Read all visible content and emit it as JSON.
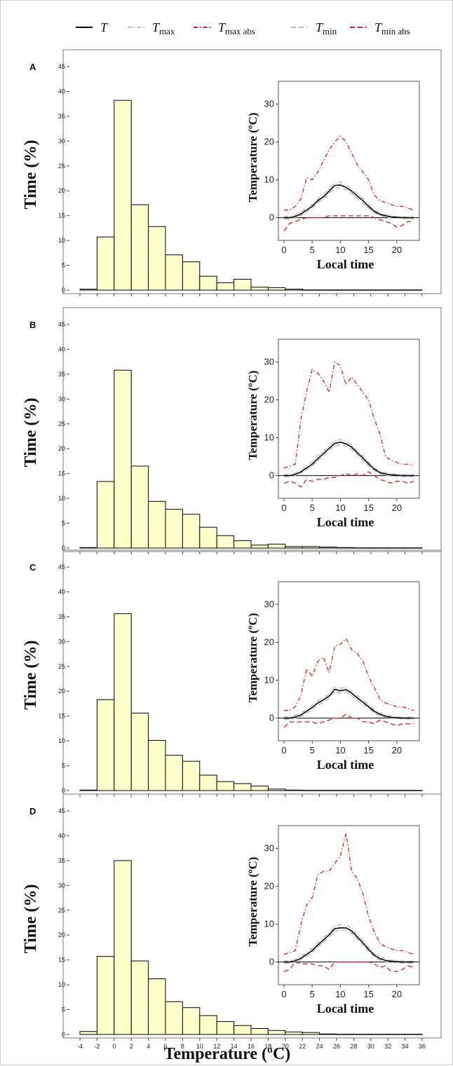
{
  "legend": {
    "items": [
      {
        "main": "T",
        "sub": "",
        "style": "solid",
        "color": "#000000"
      },
      {
        "main": "T",
        "sub": "max",
        "style": "dashdot",
        "color": "#bbbbbb"
      },
      {
        "main": "T",
        "sub": "max abs",
        "style": "dashdot",
        "color": "#e41a1c"
      },
      {
        "main": "T",
        "sub": "min",
        "style": "dashed",
        "color": "#bbbbbb"
      },
      {
        "main": "T",
        "sub": "min abs",
        "style": "dashed",
        "color": "#e41a1c"
      }
    ]
  },
  "colors": {
    "bar_fill": "#ffffcc",
    "bar_stroke": "#000000",
    "abs_line": "#e41a1c",
    "range_line": "#bbbbbb"
  },
  "xlabel": "Temperature (ºC)",
  "chart_data": [
    {
      "type": "bar",
      "panel": "A",
      "ylabel": "Time (%)",
      "ylim": [
        0,
        45
      ],
      "yticks": [
        0,
        5,
        10,
        15,
        20,
        25,
        30,
        35,
        40,
        45
      ],
      "bin_edges": [
        -4,
        -2,
        0,
        2,
        4,
        6,
        8,
        10,
        12,
        14,
        16,
        18,
        20,
        22,
        24,
        26,
        28,
        30,
        32,
        34,
        36
      ],
      "values": [
        0.2,
        10.7,
        38.2,
        17.2,
        12.8,
        7.1,
        5.7,
        2.8,
        1.5,
        2.2,
        0.6,
        0.5,
        0.2,
        0.05,
        0.05,
        0.05,
        0.05,
        0.05,
        0.05,
        0.05
      ],
      "inset": {
        "type": "line",
        "xlabel": "Local time",
        "ylabel": "Temperature (ºC)",
        "xlim": [
          -1,
          24
        ],
        "ylim": [
          -6,
          36
        ],
        "xticks": [
          0,
          5,
          10,
          15,
          20
        ],
        "yticks": [
          0,
          10,
          20,
          30
        ],
        "x": [
          0,
          1,
          2,
          3,
          4,
          5,
          6,
          7,
          8,
          9,
          10,
          11,
          12,
          13,
          14,
          15,
          16,
          17,
          18,
          19,
          20,
          21,
          22,
          23
        ],
        "series": [
          {
            "name": "T",
            "values": [
              0,
              0,
              0.3,
              1,
              2,
              3,
              4.5,
              5.5,
              7,
              8.5,
              8.6,
              8,
              7,
              5.7,
              4.5,
              3,
              1.7,
              0.9,
              0.5,
              0.2,
              0.1,
              0,
              0,
              0
            ]
          },
          {
            "name": "Tmax",
            "values": [
              0.3,
              0.3,
              0.7,
              1.5,
              2.5,
              3.5,
              5,
              6.2,
              7.6,
              9.2,
              9.4,
              8.7,
              7.6,
              6.4,
              5.2,
              3.6,
              2.1,
              1.2,
              0.8,
              0.5,
              0.3,
              0.2,
              0.2,
              0.2
            ]
          },
          {
            "name": "Tmax abs",
            "values": [
              2,
              2,
              3,
              5,
              10.5,
              10,
              12,
              15,
              18,
              20,
              21.5,
              20,
              17,
              14,
              12,
              10,
              6,
              4.5,
              4,
              3.5,
              3,
              3,
              2.5,
              2
            ]
          },
          {
            "name": "Tmin",
            "values": [
              -0.3,
              -0.3,
              0,
              0.6,
              1.5,
              2.5,
              4,
              5,
              6.4,
              7.8,
              7.9,
              7.4,
              6.4,
              5,
              3.8,
              2.5,
              1.3,
              0.6,
              0.2,
              0,
              -0.1,
              -0.2,
              -0.2,
              -0.3
            ]
          },
          {
            "name": "Tmin abs",
            "values": [
              -3.5,
              -1.5,
              -1,
              -0.5,
              0,
              0,
              0,
              0,
              0.5,
              0.5,
              0.5,
              0.5,
              0.5,
              0.5,
              0.5,
              0.5,
              0,
              -0.5,
              -1,
              -1.5,
              -2.5,
              -2,
              -1,
              -1
            ]
          }
        ]
      }
    },
    {
      "type": "bar",
      "panel": "B",
      "ylabel": "Time (%)",
      "ylim": [
        0,
        45
      ],
      "yticks": [
        0,
        5,
        10,
        15,
        20,
        25,
        30,
        35,
        40,
        45
      ],
      "bin_edges": [
        -4,
        -2,
        0,
        2,
        4,
        6,
        8,
        10,
        12,
        14,
        16,
        18,
        20,
        22,
        24,
        26,
        28,
        30,
        32,
        34,
        36
      ],
      "values": [
        0.1,
        13.4,
        35.8,
        16.5,
        9.4,
        7.8,
        6.8,
        4.2,
        2.5,
        1.5,
        0.6,
        0.8,
        0.3,
        0.3,
        0.2,
        0.1,
        0.05,
        0.05,
        0.05,
        0.05
      ],
      "inset": {
        "type": "line",
        "xlabel": "Local time",
        "ylabel": "Temperature (ºC)",
        "xlim": [
          -1,
          24
        ],
        "ylim": [
          -6,
          36
        ],
        "xticks": [
          0,
          5,
          10,
          15,
          20
        ],
        "yticks": [
          0,
          10,
          20,
          30
        ],
        "x": [
          0,
          1,
          2,
          3,
          4,
          5,
          6,
          7,
          8,
          9,
          10,
          11,
          12,
          13,
          14,
          15,
          16,
          17,
          18,
          19,
          20,
          21,
          22,
          23
        ],
        "series": [
          {
            "name": "T",
            "values": [
              0,
              0,
              0.3,
              1,
              2,
              3,
              4.5,
              5.8,
              7.2,
              8.5,
              8.8,
              8.4,
              7.5,
              6,
              4.6,
              3.1,
              1.7,
              0.8,
              0.4,
              0.2,
              0.1,
              0,
              0,
              0
            ]
          },
          {
            "name": "Tmax",
            "values": [
              0.3,
              0.3,
              0.7,
              1.5,
              2.5,
              3.6,
              5.2,
              6.5,
              7.8,
              9.2,
              9.5,
              9,
              8,
              6.6,
              5.2,
              3.6,
              2.1,
              1.2,
              0.8,
              0.5,
              0.3,
              0.2,
              0.2,
              0.2
            ]
          },
          {
            "name": "Tmax abs",
            "values": [
              2,
              2.5,
              3,
              15,
              22,
              28,
              27,
              25,
              22,
              30,
              29,
              24,
              26,
              24,
              22,
              20,
              15,
              11,
              5,
              4,
              3.5,
              3,
              3,
              2.5
            ]
          },
          {
            "name": "Tmin",
            "values": [
              -0.3,
              -0.3,
              0,
              0.6,
              1.5,
              2.5,
              4,
              5.2,
              6.6,
              7.9,
              8.1,
              7.8,
              6.9,
              5.5,
              4,
              2.6,
              1.3,
              0.5,
              0.1,
              -0.1,
              -0.2,
              -0.3,
              -0.3,
              -0.3
            ]
          },
          {
            "name": "Tmin abs",
            "values": [
              -2,
              -1.5,
              -2,
              -3,
              -1,
              -1.5,
              -1,
              -1,
              -0.5,
              -0.5,
              0,
              0.5,
              0,
              0.5,
              0,
              1,
              0,
              -1,
              -1.5,
              -2,
              -1.5,
              -1.5,
              -2,
              -1.5
            ]
          }
        ]
      }
    },
    {
      "type": "bar",
      "panel": "C",
      "ylabel": "Time (%)",
      "ylim": [
        0,
        45
      ],
      "yticks": [
        0,
        5,
        10,
        15,
        20,
        25,
        30,
        35,
        40,
        45
      ],
      "bin_edges": [
        -4,
        -2,
        0,
        2,
        4,
        6,
        8,
        10,
        12,
        14,
        16,
        18,
        20,
        22,
        24,
        26,
        28,
        30,
        32,
        34,
        36
      ],
      "values": [
        0.1,
        18.3,
        35.6,
        15.6,
        10.1,
        7.1,
        5.9,
        3.1,
        1.8,
        1.4,
        0.9,
        0.3,
        0.1,
        0.05,
        0.05,
        0.05,
        0.05,
        0.05,
        0.05,
        0.05
      ],
      "inset": {
        "type": "line",
        "xlabel": "Local time",
        "ylabel": "Temperature (ºC)",
        "xlim": [
          -1,
          24
        ],
        "ylim": [
          -6,
          36
        ],
        "xticks": [
          0,
          5,
          10,
          15,
          20
        ],
        "yticks": [
          0,
          10,
          20,
          30
        ],
        "x": [
          0,
          1,
          2,
          3,
          4,
          5,
          6,
          7,
          8,
          9,
          10,
          11,
          12,
          13,
          14,
          15,
          16,
          17,
          18,
          19,
          20,
          21,
          22,
          23
        ],
        "series": [
          {
            "name": "T",
            "values": [
              0,
              0,
              0.3,
              0.8,
              1.8,
              2.8,
              4,
              4.8,
              5.8,
              7.6,
              7.2,
              7.5,
              6.6,
              5.3,
              4.2,
              3,
              1.8,
              1,
              0.5,
              0.2,
              0.1,
              0,
              0,
              0
            ]
          },
          {
            "name": "Tmax",
            "values": [
              0.3,
              0.3,
              0.7,
              1.4,
              2.3,
              3.4,
              4.6,
              5.4,
              6.4,
              8.2,
              7.9,
              8.1,
              7.2,
              5.9,
              4.8,
              3.5,
              2.2,
              1.3,
              0.8,
              0.5,
              0.3,
              0.2,
              0.2,
              0.2
            ]
          },
          {
            "name": "Tmax abs",
            "values": [
              2,
              2,
              3,
              6,
              13,
              11,
              15,
              16,
              12,
              19,
              19.5,
              21,
              18,
              17,
              15,
              11,
              8,
              5,
              4,
              3.5,
              3,
              3,
              2.5,
              2
            ]
          },
          {
            "name": "Tmin",
            "values": [
              -0.3,
              -0.3,
              0,
              0.4,
              1.3,
              2.2,
              3.4,
              4.2,
              5.2,
              7,
              6.6,
              6.9,
              6,
              4.7,
              3.6,
              2.5,
              1.4,
              0.6,
              0.2,
              0,
              -0.1,
              -0.2,
              -0.2,
              -0.3
            ]
          },
          {
            "name": "Tmin abs",
            "values": [
              -2.5,
              -1,
              -1,
              -1,
              -1,
              -1,
              -1.5,
              -1,
              -0.5,
              0,
              0,
              1,
              0,
              0,
              -1,
              -1,
              -1.5,
              -0.5,
              -1,
              -1.5,
              -2,
              -1.5,
              -1.5,
              -1.5
            ]
          }
        ]
      }
    },
    {
      "type": "bar",
      "panel": "D",
      "ylabel": "Time (%)",
      "ylim": [
        0,
        45
      ],
      "yticks": [
        0,
        5,
        10,
        15,
        20,
        25,
        30,
        35,
        40,
        45
      ],
      "bin_edges": [
        -4,
        -2,
        0,
        2,
        4,
        6,
        8,
        10,
        12,
        14,
        16,
        18,
        20,
        22,
        24,
        26,
        28,
        30,
        32,
        34,
        36
      ],
      "values": [
        0.6,
        15.7,
        35.0,
        14.8,
        11.2,
        6.6,
        5.4,
        3.8,
        2.6,
        1.8,
        1.2,
        0.8,
        0.5,
        0.4,
        0.1,
        0.05,
        0.05,
        0.05,
        0.05,
        0.05
      ],
      "inset": {
        "type": "line",
        "xlabel": "Local time",
        "ylabel": "Temperature (ºC)",
        "xlim": [
          -1,
          24
        ],
        "ylim": [
          -6,
          36
        ],
        "xticks": [
          0,
          5,
          10,
          15,
          20
        ],
        "yticks": [
          0,
          10,
          20,
          30
        ],
        "x": [
          0,
          1,
          2,
          3,
          4,
          5,
          6,
          7,
          8,
          9,
          10,
          11,
          12,
          13,
          14,
          15,
          16,
          17,
          18,
          19,
          20,
          21,
          22,
          23
        ],
        "series": [
          {
            "name": "T",
            "values": [
              0,
              0,
              0.3,
              1,
              2,
              3,
              4.5,
              5.8,
              7.2,
              8.8,
              9,
              9,
              8.2,
              6.6,
              5,
              3.3,
              1.8,
              0.9,
              0.4,
              0.2,
              0.1,
              0,
              0,
              0
            ]
          },
          {
            "name": "Tmax",
            "values": [
              0.3,
              0.3,
              0.7,
              1.5,
              2.5,
              3.6,
              5.2,
              6.5,
              7.8,
              9.5,
              9.8,
              9.7,
              8.9,
              7.2,
              5.6,
              3.8,
              2.2,
              1.3,
              0.8,
              0.5,
              0.3,
              0.2,
              0.2,
              0.2
            ]
          },
          {
            "name": "Tmax abs",
            "values": [
              2,
              2.5,
              3,
              10,
              15,
              17,
              23,
              24,
              24,
              26,
              28,
              34,
              24,
              22,
              18,
              12,
              8,
              5,
              4,
              3.5,
              3,
              3,
              2.5,
              2
            ]
          },
          {
            "name": "Tmin",
            "values": [
              -0.3,
              -0.3,
              0,
              0.6,
              1.5,
              2.5,
              4,
              5.2,
              6.6,
              8.2,
              8.4,
              8.4,
              7.6,
              6,
              4.4,
              2.8,
              1.4,
              0.5,
              0.1,
              -0.1,
              -0.2,
              -0.3,
              -0.3,
              -0.3
            ]
          },
          {
            "name": "Tmin abs",
            "values": [
              -2.5,
              -2,
              0,
              -0.5,
              -0.5,
              -0.5,
              -1,
              -1,
              -2,
              0,
              0,
              0,
              0,
              0,
              0,
              0,
              -0.5,
              -1.5,
              -1,
              -2.5,
              -2.5,
              -2,
              -1,
              -1.5
            ]
          }
        ]
      }
    }
  ]
}
